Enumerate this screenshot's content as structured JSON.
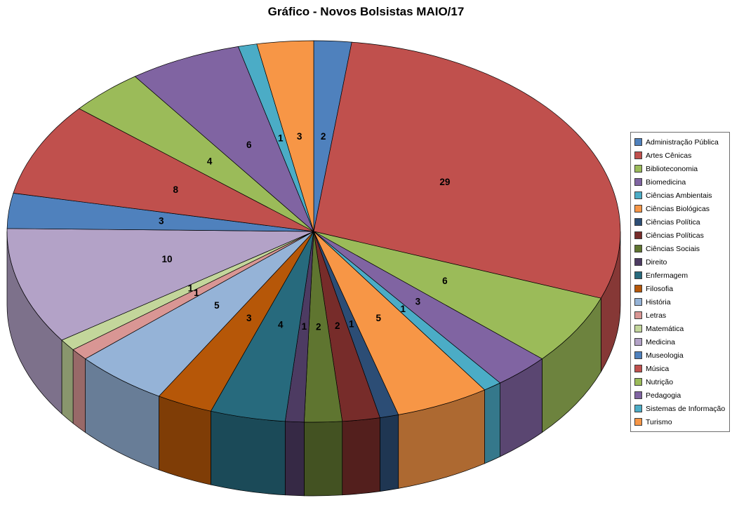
{
  "title": "Gráfico - Novos Bolsistas MAIO/17",
  "chart_data": {
    "type": "pie",
    "style": "3d",
    "title": "Gráfico - Novos Bolsistas MAIO/17",
    "total": 101,
    "start_angle_deg": -90,
    "direction": "clockwise",
    "data_labels": "value",
    "legend_position": "right",
    "slices": [
      {
        "label": "Administração Pública",
        "value": 2,
        "color": "#4F81BD"
      },
      {
        "label": "Artes Cênicas",
        "value": 29,
        "color": "#C0504D"
      },
      {
        "label": "Biblioteconomia",
        "value": 6,
        "color": "#9BBB59"
      },
      {
        "label": "Biomedicina",
        "value": 3,
        "color": "#8064A2"
      },
      {
        "label": "Ciências Ambientais",
        "value": 1,
        "color": "#4BACC6"
      },
      {
        "label": "Ciências Biológicas",
        "value": 5,
        "color": "#F79646"
      },
      {
        "label": "Ciências Política",
        "value": 1,
        "color": "#2C4D75"
      },
      {
        "label": "Ciências Políticas",
        "value": 2,
        "color": "#772C2A"
      },
      {
        "label": "Ciências Sociais",
        "value": 2,
        "color": "#5F7530"
      },
      {
        "label": "Direito",
        "value": 1,
        "color": "#4D3B62"
      },
      {
        "label": "Enfermagem",
        "value": 4,
        "color": "#276A7D"
      },
      {
        "label": "Filosofia",
        "value": 3,
        "color": "#B65708"
      },
      {
        "label": "História",
        "value": 5,
        "color": "#95B3D7"
      },
      {
        "label": "Letras",
        "value": 1,
        "color": "#D99694"
      },
      {
        "label": "Matemática",
        "value": 1,
        "color": "#C3D69B"
      },
      {
        "label": "Medicina",
        "value": 10,
        "color": "#B3A2C7"
      },
      {
        "label": "Museologia",
        "value": 3,
        "color": "#4F81BD"
      },
      {
        "label": "Música",
        "value": 8,
        "color": "#C0504D"
      },
      {
        "label": "Nutrição",
        "value": 4,
        "color": "#9BBB59"
      },
      {
        "label": "Pedagogia",
        "value": 6,
        "color": "#8064A2"
      },
      {
        "label": "Sistemas de Informação",
        "value": 1,
        "color": "#4BACC6"
      },
      {
        "label": "Turismo",
        "value": 3,
        "color": "#F79646"
      }
    ]
  }
}
